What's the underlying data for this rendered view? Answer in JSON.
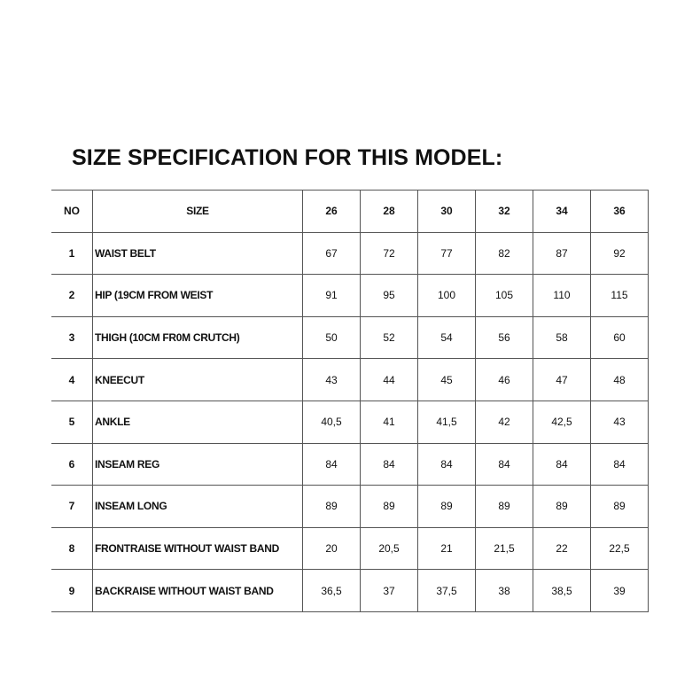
{
  "title": "SIZE SPECIFICATION FOR THIS MODEL:",
  "table": {
    "headers": {
      "no": "NO",
      "name": "SIZE",
      "sizes": [
        "26",
        "28",
        "30",
        "32",
        "34",
        "36"
      ]
    },
    "rows": [
      {
        "no": "1",
        "name": "WAIST BELT",
        "values": [
          "67",
          "72",
          "77",
          "82",
          "87",
          "92"
        ]
      },
      {
        "no": "2",
        "name": "HIP (19CM FROM WEIST",
        "values": [
          "91",
          "95",
          "100",
          "105",
          "110",
          "115"
        ]
      },
      {
        "no": "3",
        "name": "THIGH (10CM FR0M CRUTCH)",
        "values": [
          "50",
          "52",
          "54",
          "56",
          "58",
          "60"
        ]
      },
      {
        "no": "4",
        "name": "KNEECUT",
        "values": [
          "43",
          "44",
          "45",
          "46",
          "47",
          "48"
        ]
      },
      {
        "no": "5",
        "name": "ANKLE",
        "values": [
          "40,5",
          "41",
          "41,5",
          "42",
          "42,5",
          "43"
        ]
      },
      {
        "no": "6",
        "name": "INSEAM REG",
        "values": [
          "84",
          "84",
          "84",
          "84",
          "84",
          "84"
        ]
      },
      {
        "no": "7",
        "name": "INSEAM LONG",
        "values": [
          "89",
          "89",
          "89",
          "89",
          "89",
          "89"
        ]
      },
      {
        "no": "8",
        "name": "FRONTRAISE WITHOUT WAIST BAND",
        "values": [
          "20",
          "20,5",
          "21",
          "21,5",
          "22",
          "22,5"
        ]
      },
      {
        "no": "9",
        "name": "BACKRAISE WITHOUT WAIST BAND",
        "values": [
          "36,5",
          "37",
          "37,5",
          "38",
          "38,5",
          "39"
        ]
      }
    ]
  }
}
